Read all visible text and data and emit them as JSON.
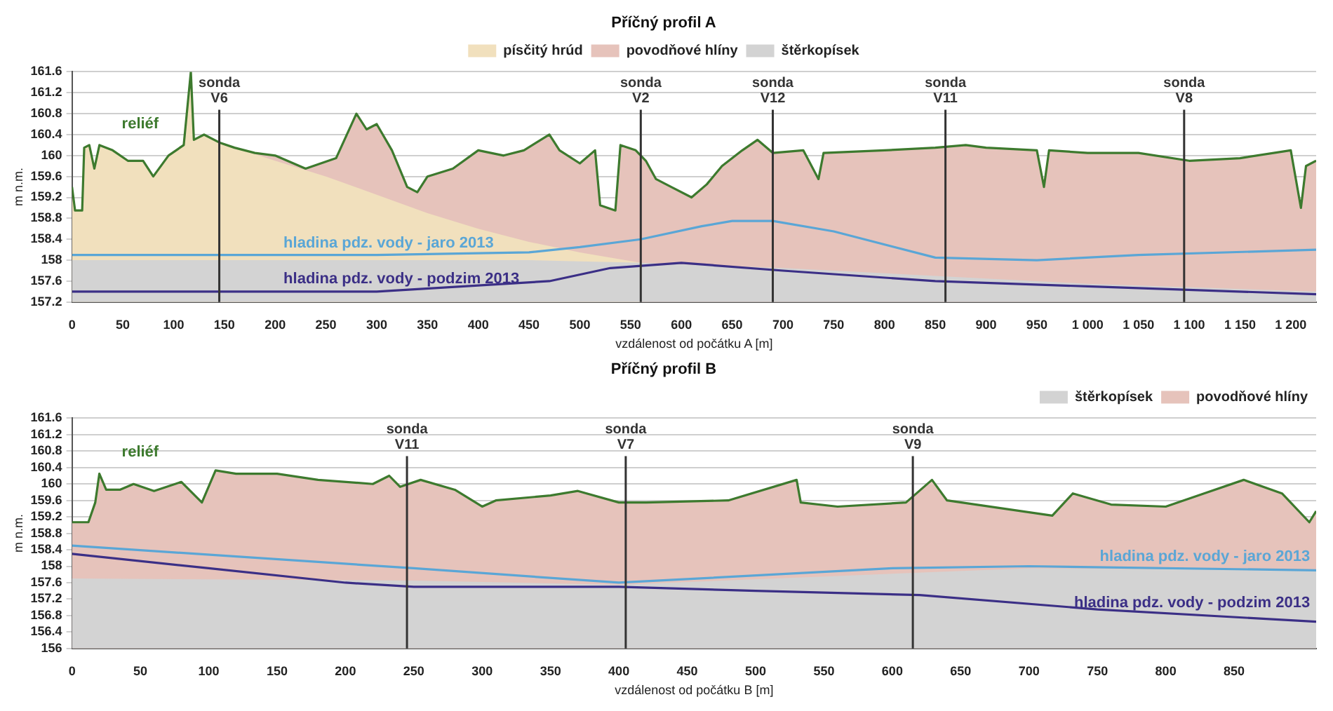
{
  "chart_data": [
    {
      "type": "line",
      "title": "Příčný profil A",
      "xlabel": "vzdálenost od počátku A [m]",
      "ylabel": "m n.m.",
      "xlim": [
        0,
        1225
      ],
      "ylim": [
        157.2,
        161.6
      ],
      "xticks": [
        0,
        50,
        100,
        150,
        200,
        250,
        300,
        350,
        400,
        450,
        500,
        550,
        600,
        650,
        700,
        750,
        800,
        850,
        900,
        950,
        {
          "value": 1000,
          "label": "1 000"
        },
        {
          "value": 1050,
          "label": "1 050"
        },
        {
          "value": 1100,
          "label": "1 100"
        },
        {
          "value": 1150,
          "label": "1 150"
        },
        {
          "value": 1200,
          "label": "1 200"
        }
      ],
      "yticks": [
        157.2,
        157.6,
        158,
        158.4,
        158.8,
        159.2,
        159.6,
        160,
        160.4,
        160.8,
        161.2,
        161.6
      ],
      "grid": "y",
      "legend": "top",
      "marker": "none",
      "series": [
        {
          "name": "písčitý hrúd",
          "type": "area",
          "color": "#f1e0bd",
          "x": [
            0,
            3,
            10,
            12,
            17,
            22,
            27,
            40,
            55,
            70,
            80,
            95,
            110,
            117,
            120,
            130,
            145,
            200,
            250,
            300,
            350,
            400,
            450,
            500,
            560
          ],
          "values": [
            159.4,
            158.95,
            158.95,
            160.15,
            160.2,
            159.75,
            160.2,
            160.1,
            159.9,
            159.9,
            159.6,
            160,
            160.2,
            161.6,
            160.3,
            160.4,
            160.25,
            159.9,
            159.6,
            159.25,
            158.9,
            158.6,
            158.35,
            158.15,
            157.95
          ]
        },
        {
          "name": "povodňové hlíny",
          "type": "area",
          "color": "#e6c3bb",
          "x": [
            145,
            160,
            180,
            200,
            230,
            260,
            280,
            290,
            300,
            315,
            330,
            340,
            350,
            375,
            400,
            425,
            445,
            470,
            480,
            500,
            515,
            520,
            535,
            540,
            555,
            565,
            575,
            590,
            610,
            625,
            640,
            660,
            675,
            690,
            720,
            735,
            740,
            800,
            850,
            880,
            900,
            950,
            957,
            962,
            1000,
            1050,
            1100,
            1150,
            1200,
            1210,
            1215,
            1225
          ],
          "values": [
            160.25,
            160.15,
            160.05,
            160,
            159.75,
            159.95,
            160.8,
            160.5,
            160.6,
            160.1,
            159.4,
            159.3,
            159.6,
            159.75,
            160.1,
            160,
            160.1,
            160.4,
            160.1,
            159.85,
            160.1,
            159.05,
            158.95,
            160.2,
            160.1,
            159.9,
            159.55,
            159.4,
            159.2,
            159.45,
            159.8,
            160.1,
            160.3,
            160.05,
            160.1,
            159.55,
            160.05,
            160.1,
            160.15,
            160.2,
            160.15,
            160.1,
            159.4,
            160.1,
            160.05,
            160.05,
            159.9,
            159.95,
            160.1,
            159,
            159.8,
            159.9
          ]
        },
        {
          "name": "štěrkopísek",
          "type": "area",
          "color": "#d3d3d3",
          "x": [
            0,
            450,
            560,
            700,
            850,
            1000,
            1225
          ],
          "values": [
            158,
            158,
            157.95,
            157.85,
            157.7,
            157.55,
            157.4
          ]
        },
        {
          "name": "reliéf",
          "type": "line",
          "color": "#3d7a2e",
          "x": [
            0,
            3,
            10,
            12,
            17,
            22,
            27,
            40,
            55,
            70,
            80,
            95,
            110,
            117,
            120,
            130,
            145,
            160,
            180,
            200,
            230,
            260,
            280,
            290,
            300,
            315,
            330,
            340,
            350,
            375,
            400,
            425,
            445,
            470,
            480,
            500,
            515,
            520,
            535,
            540,
            555,
            565,
            575,
            590,
            610,
            625,
            640,
            660,
            675,
            690,
            720,
            735,
            740,
            800,
            850,
            880,
            900,
            950,
            957,
            962,
            1000,
            1050,
            1100,
            1150,
            1200,
            1210,
            1215,
            1225
          ],
          "values": [
            159.4,
            158.95,
            158.95,
            160.15,
            160.2,
            159.75,
            160.2,
            160.1,
            159.9,
            159.9,
            159.6,
            160,
            160.2,
            161.6,
            160.3,
            160.4,
            160.25,
            160.15,
            160.05,
            160,
            159.75,
            159.95,
            160.8,
            160.5,
            160.6,
            160.1,
            159.4,
            159.3,
            159.6,
            159.75,
            160.1,
            160,
            160.1,
            160.4,
            160.1,
            159.85,
            160.1,
            159.05,
            158.95,
            160.2,
            160.1,
            159.9,
            159.55,
            159.4,
            159.2,
            159.45,
            159.8,
            160.1,
            160.3,
            160.05,
            160.1,
            159.55,
            160.05,
            160.1,
            160.15,
            160.2,
            160.15,
            160.1,
            159.4,
            160.1,
            160.05,
            160.05,
            159.9,
            159.95,
            160.1,
            159,
            159.8,
            159.9
          ]
        },
        {
          "name": "hladina pdz. vody - jaro 2013",
          "type": "line",
          "color": "#5aa6d6",
          "x": [
            0,
            300,
            450,
            500,
            560,
            620,
            650,
            690,
            750,
            850,
            950,
            1050,
            1225
          ],
          "values": [
            158.1,
            158.1,
            158.15,
            158.25,
            158.4,
            158.65,
            158.75,
            158.75,
            158.55,
            158.05,
            158,
            158.1,
            158.2
          ]
        },
        {
          "name": "hladina pdz. vody - podzim 2013",
          "type": "line",
          "color": "#3b2f86",
          "x": [
            0,
            300,
            470,
            530,
            600,
            700,
            850,
            1000,
            1225
          ],
          "values": [
            157.4,
            157.4,
            157.6,
            157.85,
            157.95,
            157.8,
            157.6,
            157.5,
            157.35
          ]
        }
      ],
      "ref_lines": [
        {
          "axis": "x",
          "value": 145,
          "label": "sonda V6",
          "color": "#333333"
        },
        {
          "axis": "x",
          "value": 560,
          "label": "sonda V2",
          "color": "#333333"
        },
        {
          "axis": "x",
          "value": 690,
          "label": "sonda V12",
          "color": "#333333"
        },
        {
          "axis": "x",
          "value": 860,
          "label": "sonda V11",
          "color": "#333333"
        },
        {
          "axis": "x",
          "value": 1095,
          "label": "sonda V8",
          "color": "#333333"
        }
      ]
    },
    {
      "type": "line",
      "title": "Příčný profil B",
      "xlabel": "vzdálenost od počátku B [m]",
      "ylabel": "m n.m.",
      "xlim": [
        0,
        910
      ],
      "ylim": [
        156,
        161.6
      ],
      "xticks": [
        0,
        50,
        100,
        150,
        200,
        250,
        300,
        350,
        400,
        450,
        500,
        550,
        600,
        650,
        700,
        750,
        800,
        850
      ],
      "yticks": [
        156,
        156.4,
        156.8,
        157.2,
        157.6,
        158,
        158.4,
        158.8,
        159.2,
        159.6,
        160,
        160.4,
        160.8,
        161.2,
        161.6
      ],
      "grid": "y",
      "legend": "top right",
      "marker": "none",
      "series": [
        {
          "name": "štěrkopísek",
          "type": "area",
          "color": "#d3d3d3",
          "x": [
            0,
            250,
            400,
            550,
            700,
            910
          ],
          "values": [
            157.7,
            157.65,
            157.55,
            157.75,
            157.95,
            157.9
          ]
        },
        {
          "name": "povodňové hlíny",
          "type": "area",
          "color": "#e6c3bb",
          "x": [
            0,
            12,
            17,
            20,
            25,
            35,
            45,
            60,
            80,
            95,
            105,
            120,
            150,
            180,
            220,
            232,
            240,
            255,
            280,
            300,
            310,
            350,
            370,
            400,
            420,
            480,
            530,
            533,
            560,
            610,
            629,
            640,
            717,
            732,
            760,
            800,
            828,
            857,
            885,
            905,
            910
          ],
          "values": [
            159.07,
            159.07,
            159.55,
            160.25,
            159.86,
            159.86,
            160,
            159.83,
            160.05,
            159.55,
            160.33,
            160.25,
            160.25,
            160.1,
            160,
            160.2,
            159.93,
            160.1,
            159.86,
            159.45,
            159.6,
            159.72,
            159.83,
            159.55,
            159.55,
            159.6,
            160.1,
            159.55,
            159.45,
            159.55,
            160.1,
            159.6,
            159.23,
            159.77,
            159.5,
            159.45,
            159.77,
            160.1,
            159.77,
            159.07,
            159.34
          ]
        },
        {
          "name": "reliéf",
          "type": "line",
          "color": "#3d7a2e",
          "x": [
            0,
            12,
            17,
            20,
            25,
            35,
            45,
            60,
            80,
            95,
            105,
            120,
            150,
            180,
            220,
            232,
            240,
            255,
            280,
            300,
            310,
            350,
            370,
            400,
            420,
            480,
            530,
            533,
            560,
            610,
            629,
            640,
            717,
            732,
            760,
            800,
            828,
            857,
            885,
            905,
            910
          ],
          "values": [
            159.07,
            159.07,
            159.55,
            160.25,
            159.86,
            159.86,
            160,
            159.83,
            160.05,
            159.55,
            160.33,
            160.25,
            160.25,
            160.1,
            160,
            160.2,
            159.93,
            160.1,
            159.86,
            159.45,
            159.6,
            159.72,
            159.83,
            159.55,
            159.55,
            159.6,
            160.1,
            159.55,
            159.45,
            159.55,
            160.1,
            159.6,
            159.23,
            159.77,
            159.5,
            159.45,
            159.77,
            160.1,
            159.77,
            159.07,
            159.34
          ]
        },
        {
          "name": "hladina pdz. vody - jaro 2013",
          "type": "line",
          "color": "#5aa6d6",
          "x": [
            0,
            250,
            400,
            600,
            700,
            910
          ],
          "values": [
            158.5,
            157.95,
            157.6,
            157.95,
            158,
            157.9
          ]
        },
        {
          "name": "hladina pdz. vody - podzim 2013",
          "type": "line",
          "color": "#3b2f86",
          "x": [
            0,
            100,
            200,
            250,
            400,
            500,
            620,
            750,
            910
          ],
          "values": [
            158.3,
            157.95,
            157.6,
            157.5,
            157.5,
            157.4,
            157.3,
            156.95,
            156.65
          ]
        }
      ],
      "ref_lines": [
        {
          "axis": "x",
          "value": 245,
          "label": "sonda V11",
          "color": "#333333"
        },
        {
          "axis": "x",
          "value": 405,
          "label": "sonda V7",
          "color": "#333333"
        },
        {
          "axis": "x",
          "value": 615,
          "label": "sonda V9",
          "color": "#333333"
        }
      ]
    }
  ]
}
